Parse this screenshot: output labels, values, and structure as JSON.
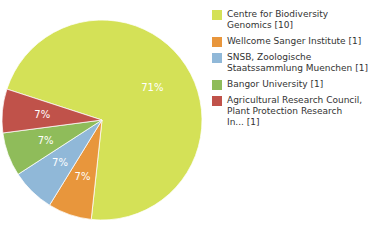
{
  "chart_data": {
    "type": "pie",
    "categories": [
      "Centre for Biodiversity\nGenomics [10]",
      "Wellcome Sanger Institute [1]",
      "SNSB, Zoologische\nStaatssammlung Muenchen [1]",
      "Bangor University [1]",
      "Agricultural Research Council,\nPlant Protection Research\nIn... [1]"
    ],
    "values": [
      71,
      7,
      7,
      7,
      7
    ],
    "value_labels": [
      "71%",
      "7%",
      "7%",
      "7%",
      "7%"
    ],
    "colors": [
      "#d4e157",
      "#e8963c",
      "#90b8d8",
      "#8fbc5a",
      "#c0524a"
    ],
    "data_labels": true,
    "legend": "right"
  }
}
